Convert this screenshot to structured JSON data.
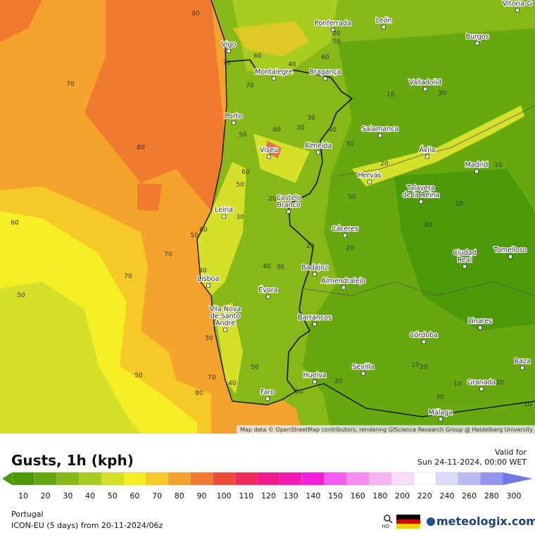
{
  "header": {
    "title": "Gusts, 1h (kph)",
    "valid_label": "Valid for",
    "valid_time": "Sun 24-11-2024, 00:00 WET"
  },
  "legend": {
    "values": [
      10,
      20,
      30,
      40,
      50,
      60,
      70,
      80,
      90,
      100,
      110,
      120,
      130,
      140,
      150,
      160,
      180,
      200,
      220,
      240,
      260,
      280,
      300
    ],
    "colors": [
      "#4c9a0a",
      "#66a80e",
      "#86b918",
      "#a8cc20",
      "#d4e02a",
      "#f4ee22",
      "#f6c828",
      "#f4a42c",
      "#f07a2e",
      "#ec4a36",
      "#ee2a5a",
      "#f01c8c",
      "#f21cb4",
      "#f020dc",
      "#f25af0",
      "#f48cf0",
      "#f6b4f4",
      "#f8dcf8",
      "#ffffff",
      "#dcdcf8",
      "#b8b8f4",
      "#9494f0",
      "#6e78e8"
    ]
  },
  "footer": {
    "region": "Portugal",
    "model": "ICON-EU (5 days) from 20-11-2024/06z",
    "hd": "HD",
    "brand": "meteologix.com"
  },
  "map": {
    "attribution": "Map data © OpenStreetMap contributors, rendering GIScience Research Group @ Heidelberg University",
    "cities": [
      {
        "lines": [
          "Vitoria-G"
        ]
      },
      {
        "lines": [
          "Ponferrada"
        ]
      },
      {
        "lines": [
          "León"
        ]
      },
      {
        "lines": [
          "Burgos"
        ]
      },
      {
        "lines": [
          "Vigo"
        ]
      },
      {
        "lines": [
          "Montalegre"
        ]
      },
      {
        "lines": [
          "Bragança"
        ]
      },
      {
        "lines": [
          "Valladolid"
        ]
      },
      {
        "lines": [
          "Porto"
        ]
      },
      {
        "lines": [
          "Salamanca"
        ]
      },
      {
        "lines": [
          "Viseu"
        ]
      },
      {
        "lines": [
          "Almeida"
        ]
      },
      {
        "lines": [
          "Ávila"
        ]
      },
      {
        "lines": [
          "Madrid"
        ]
      },
      {
        "lines": [
          "Hervás"
        ]
      },
      {
        "lines": [
          "Talavera",
          "de la Reina"
        ]
      },
      {
        "lines": [
          "Castelo",
          "Branco"
        ]
      },
      {
        "lines": [
          "Leiria"
        ]
      },
      {
        "lines": [
          "Cáceres"
        ]
      },
      {
        "lines": [
          "Ciudad",
          "Real"
        ]
      },
      {
        "lines": [
          "Tomelloso"
        ]
      },
      {
        "lines": [
          "Lisboa"
        ]
      },
      {
        "lines": [
          "Badajoz"
        ]
      },
      {
        "lines": [
          "Évora"
        ]
      },
      {
        "lines": [
          "Almendralejo"
        ]
      },
      {
        "lines": [
          "Vila Nova",
          "de Santo",
          "André"
        ]
      },
      {
        "lines": [
          "Barrancos"
        ]
      },
      {
        "lines": [
          "Linares"
        ]
      },
      {
        "lines": [
          "Córdoba"
        ]
      },
      {
        "lines": [
          "Sevilla"
        ]
      },
      {
        "lines": [
          "Baza"
        ]
      },
      {
        "lines": [
          "Huelva"
        ]
      },
      {
        "lines": [
          "Granada"
        ]
      },
      {
        "lines": [
          "Faro"
        ]
      },
      {
        "lines": [
          "Málaga"
        ]
      }
    ],
    "contour_labels": [
      90,
      70,
      80,
      70,
      60,
      70,
      40,
      60,
      70,
      20,
      50,
      40,
      30,
      30,
      40,
      30,
      60,
      50,
      20,
      30,
      50,
      60,
      70,
      70,
      60,
      50,
      40,
      40,
      30,
      20,
      20,
      20,
      10,
      30,
      10,
      10,
      20,
      50,
      70,
      80,
      40,
      50,
      50,
      20,
      10,
      20,
      30,
      10,
      20,
      10,
      50,
      50
    ]
  }
}
